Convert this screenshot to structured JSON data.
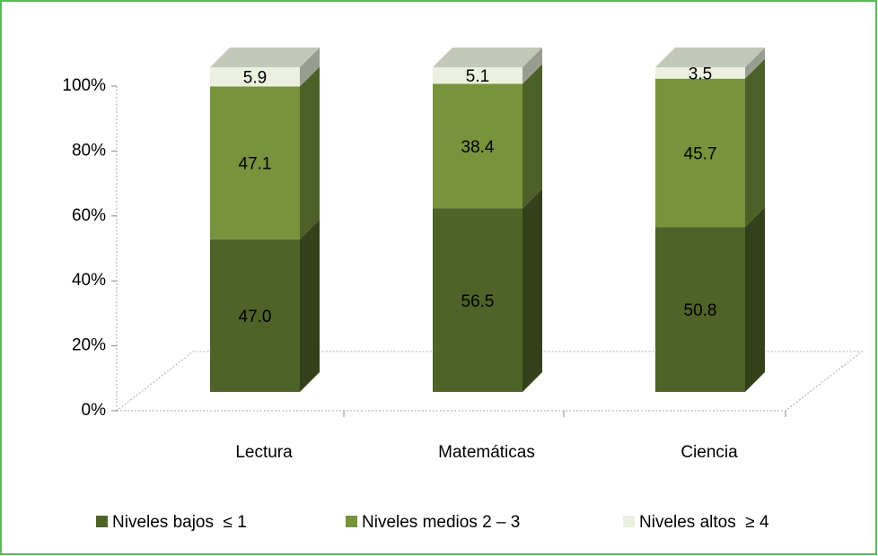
{
  "chart_data": {
    "type": "bar3d_stacked",
    "categories": [
      "Lectura",
      "Matemáticas",
      "Ciencia"
    ],
    "series": [
      {
        "name": "Niveles bajos  ≤ 1",
        "color": "#4f6228",
        "values": [
          47.0,
          56.5,
          50.8
        ],
        "value_labels": [
          "47.0",
          "56.5",
          "50.8"
        ]
      },
      {
        "name": "Niveles medios 2 – 3",
        "color": "#77933c",
        "values": [
          47.1,
          38.4,
          45.7
        ],
        "value_labels": [
          "47.1",
          "38.4",
          "45.7"
        ]
      },
      {
        "name": "Niveles altos  ≥ 4",
        "color": "#ebf1de",
        "values": [
          5.9,
          5.1,
          3.5
        ],
        "value_labels": [
          "5.9",
          "5.1",
          "3.5"
        ]
      }
    ],
    "ylim": [
      0,
      100
    ],
    "yticks": [
      {
        "value": 0,
        "label": "0%"
      },
      {
        "value": 20,
        "label": "20%"
      },
      {
        "value": 40,
        "label": "40%"
      },
      {
        "value": 60,
        "label": "60%"
      },
      {
        "value": 80,
        "label": "80%"
      },
      {
        "value": 100,
        "label": "100%"
      }
    ],
    "legend": "bottom"
  }
}
